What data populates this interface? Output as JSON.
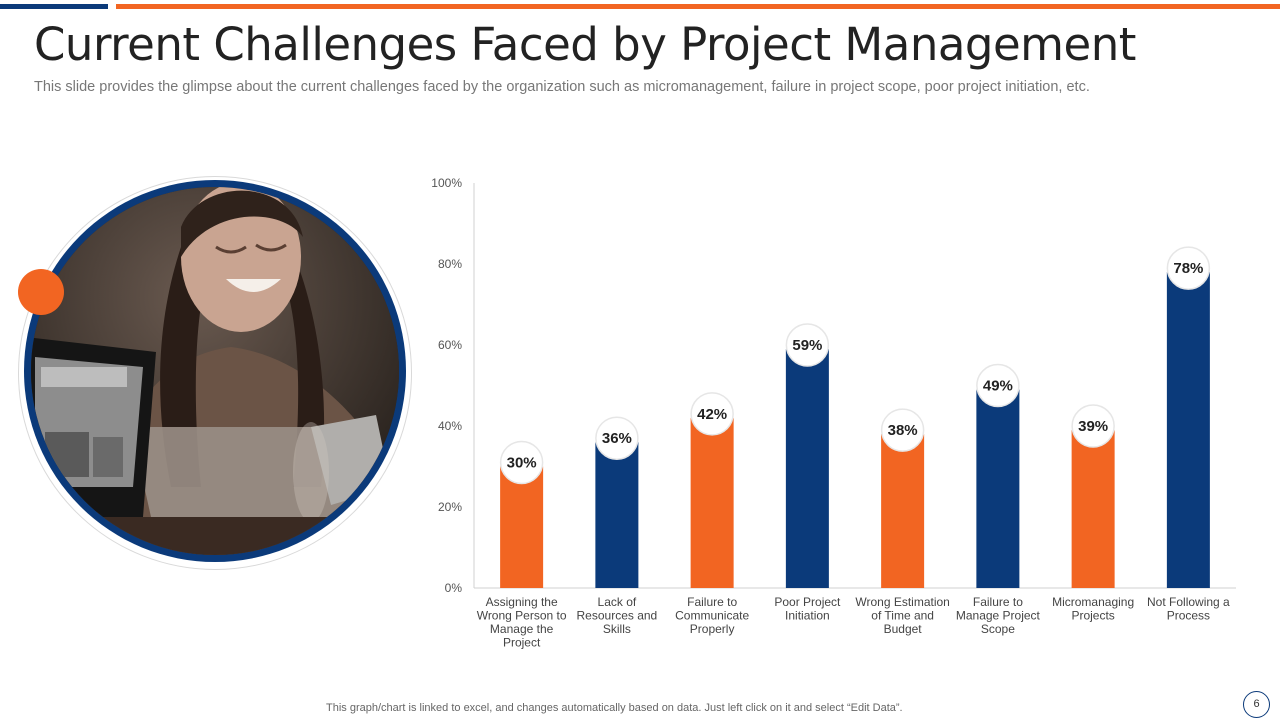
{
  "slide": {
    "title": "Current Challenges Faced by Project Management",
    "subtitle": "This slide provides the glimpse about the current challenges faced by the organization such as micromanagement, failure in project scope, poor project initiation,  etc.",
    "footer_note": "This graph/chart is linked to excel,  and changes automatically based on data. Just left click on it and select “Edit Data”.",
    "page_number": "6"
  },
  "colors": {
    "navy": "#0b3a7a",
    "orange": "#f26522"
  },
  "chart_data": {
    "type": "bar",
    "title": "",
    "xlabel": "",
    "ylabel": "",
    "ylim": [
      0,
      100
    ],
    "y_ticks": [
      "0%",
      "20%",
      "40%",
      "60%",
      "80%",
      "100%"
    ],
    "categories": [
      "Assigning the Wrong Person to Manage the Project",
      "Lack of Resources and Skills",
      "Failure to Communicate Properly",
      "Poor Project Initiation",
      "Wrong Estimation of Time and Budget",
      "Failure to Manage Project Scope",
      "Micromanaging Projects",
      "Not Following a Process"
    ],
    "category_lines": [
      [
        "Assigning the",
        "Wrong Person to",
        "Manage the",
        "Project"
      ],
      [
        "Lack of",
        "Resources and",
        "Skills"
      ],
      [
        "Failure to",
        "Communicate",
        "Properly"
      ],
      [
        "Poor Project",
        "Initiation"
      ],
      [
        "Wrong Estimation",
        "of Time and",
        "Budget"
      ],
      [
        "Failure to",
        "Manage Project",
        "Scope"
      ],
      [
        "Micromanaging",
        "Projects"
      ],
      [
        "Not Following a",
        "Process"
      ]
    ],
    "values": [
      30,
      36,
      42,
      59,
      38,
      49,
      39,
      78
    ],
    "data_labels": [
      "30%",
      "36%",
      "42%",
      "59%",
      "38%",
      "49%",
      "39%",
      "78%"
    ],
    "bar_colors": [
      "#f26522",
      "#0b3a7a",
      "#f26522",
      "#0b3a7a",
      "#f26522",
      "#0b3a7a",
      "#f26522",
      "#0b3a7a"
    ],
    "grid": false,
    "legend": "none"
  }
}
